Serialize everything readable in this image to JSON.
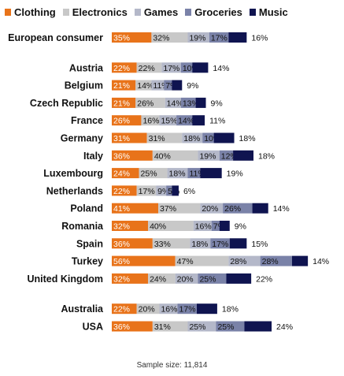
{
  "chart_data": {
    "type": "bar",
    "stacked": true,
    "categories": [
      "European consumer",
      "Austria",
      "Belgium",
      "Czech Republic",
      "France",
      "Germany",
      "Italy",
      "Luxembourg",
      "Netherlands",
      "Poland",
      "Romania",
      "Spain",
      "Turkey",
      "United Kingdom",
      "Australia",
      "USA"
    ],
    "gap_before": [
      "Austria",
      "Australia"
    ],
    "series": [
      {
        "name": "Clothing",
        "color": "#e8731a",
        "values": [
          35,
          22,
          21,
          21,
          26,
          31,
          36,
          24,
          22,
          41,
          32,
          36,
          56,
          32,
          22,
          36
        ]
      },
      {
        "name": "Electronics",
        "color": "#c8c8c8",
        "values": [
          32,
          22,
          14,
          26,
          16,
          31,
          40,
          25,
          17,
          37,
          40,
          33,
          47,
          24,
          20,
          31
        ]
      },
      {
        "name": "Games",
        "color": "#b4b8c9",
        "values": [
          19,
          17,
          11,
          14,
          15,
          18,
          19,
          18,
          9,
          20,
          16,
          18,
          28,
          20,
          16,
          25
        ]
      },
      {
        "name": "Groceries",
        "color": "#7a82a8",
        "values": [
          17,
          10,
          7,
          13,
          14,
          10,
          12,
          11,
          5,
          26,
          7,
          17,
          28,
          25,
          17,
          25
        ]
      },
      {
        "name": "Music",
        "color": "#0f1450",
        "values": [
          16,
          14,
          9,
          9,
          11,
          18,
          18,
          19,
          6,
          14,
          9,
          15,
          14,
          22,
          18,
          24
        ]
      }
    ],
    "value_suffix": "%",
    "legend_position": "top-left",
    "grid": false
  },
  "footnote": "Sample size: 11,814"
}
